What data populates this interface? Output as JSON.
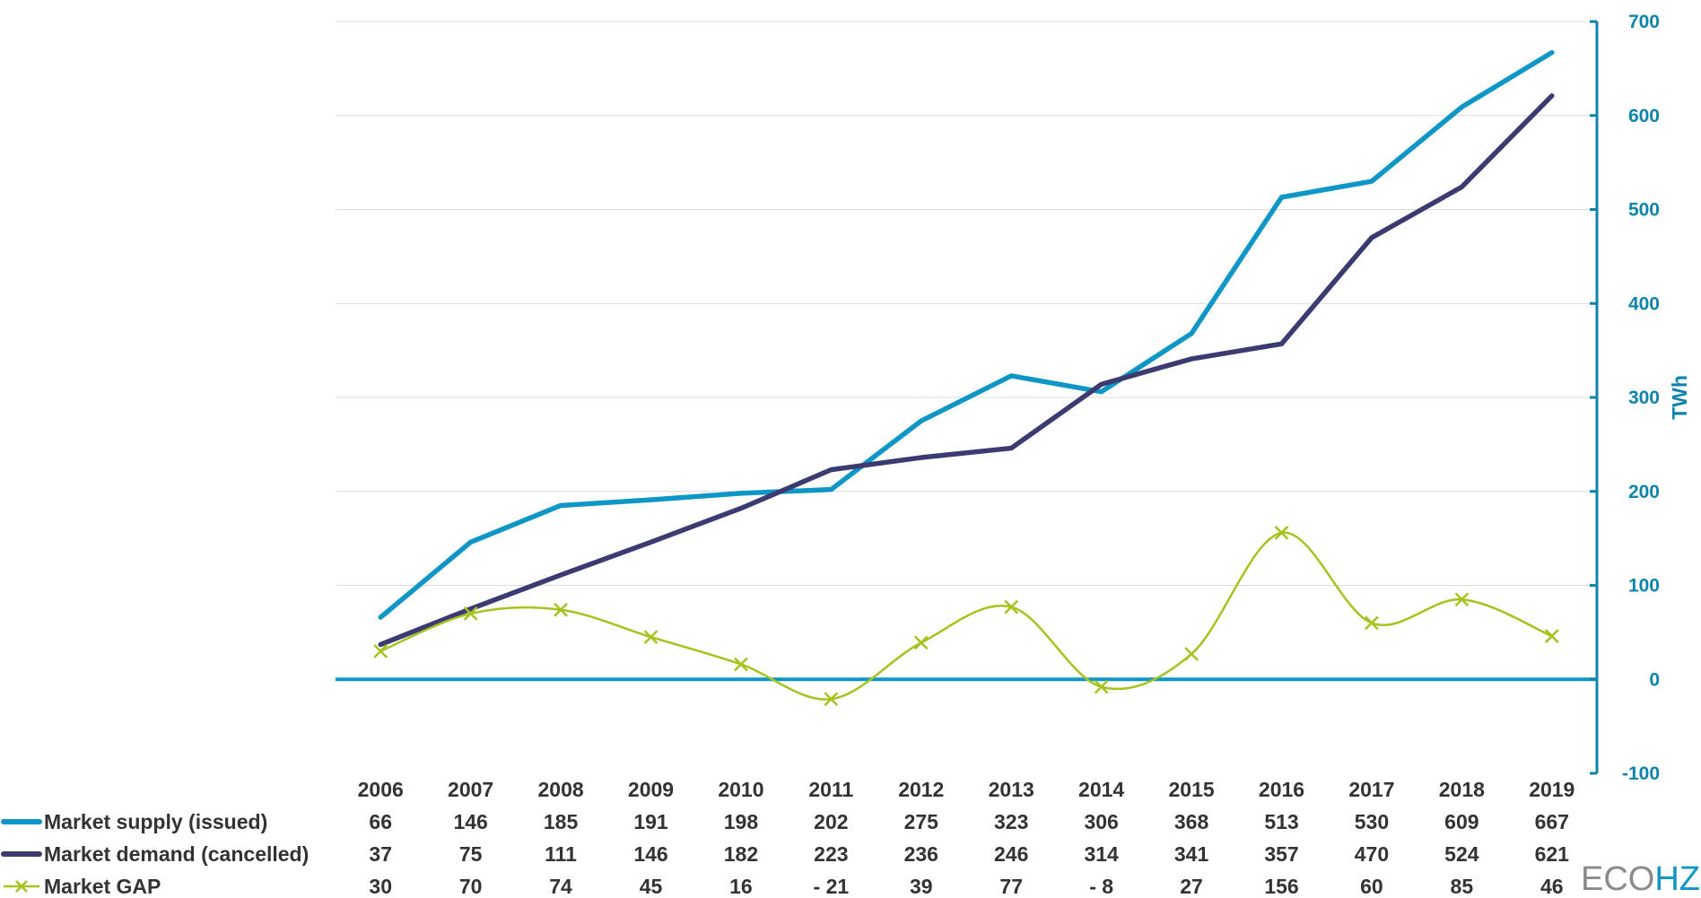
{
  "chart_data": {
    "type": "line",
    "title": "",
    "xlabel": "",
    "ylabel": "TWh",
    "ylim": [
      -100,
      700
    ],
    "yticks": [
      -100,
      0,
      100,
      200,
      300,
      400,
      500,
      600,
      700
    ],
    "y_axis_position": "right",
    "grid": true,
    "legend_placement": "data-table-left",
    "categories": [
      "2006",
      "2007",
      "2008",
      "2009",
      "2010",
      "2011",
      "2012",
      "2013",
      "2014",
      "2015",
      "2016",
      "2017",
      "2018",
      "2019"
    ],
    "series": [
      {
        "name": "Market supply (issued)",
        "color": "#0e97c6",
        "style": "straight",
        "values": [
          66,
          146,
          185,
          191,
          198,
          202,
          275,
          323,
          306,
          368,
          513,
          530,
          609,
          667
        ],
        "table_values": [
          "66",
          "146",
          "185",
          "191",
          "198",
          "202",
          "275",
          "323",
          "306",
          "368",
          "513",
          "530",
          "609",
          "667"
        ]
      },
      {
        "name": "Market demand (cancelled)",
        "color": "#3b3b72",
        "style": "straight",
        "values": [
          37,
          75,
          111,
          146,
          182,
          223,
          236,
          246,
          314,
          341,
          357,
          470,
          524,
          621
        ],
        "table_values": [
          "37",
          "75",
          "111",
          "146",
          "182",
          "223",
          "236",
          "246",
          "314",
          "341",
          "357",
          "470",
          "524",
          "621"
        ]
      },
      {
        "name": "Market GAP",
        "color": "#a4c31f",
        "style": "smooth",
        "marker": "x",
        "values": [
          30,
          70,
          74,
          45,
          16,
          -21,
          39,
          77,
          -8,
          27,
          156,
          60,
          85,
          46
        ],
        "table_values": [
          "30",
          "70",
          "74",
          "45",
          "16",
          "- 21",
          "39",
          "77",
          "- 8",
          "27",
          "156",
          "60",
          "85",
          "46"
        ]
      }
    ]
  },
  "colors": {
    "axis": "#0e84ad",
    "grid": "#dcdcdc",
    "zero_line": "#0e97c6",
    "text": "#333333",
    "logo_eco": "#8a8a8a",
    "logo_hz": "#0e97c6"
  },
  "logo": {
    "part1": "ECO",
    "part2": "HZ"
  }
}
